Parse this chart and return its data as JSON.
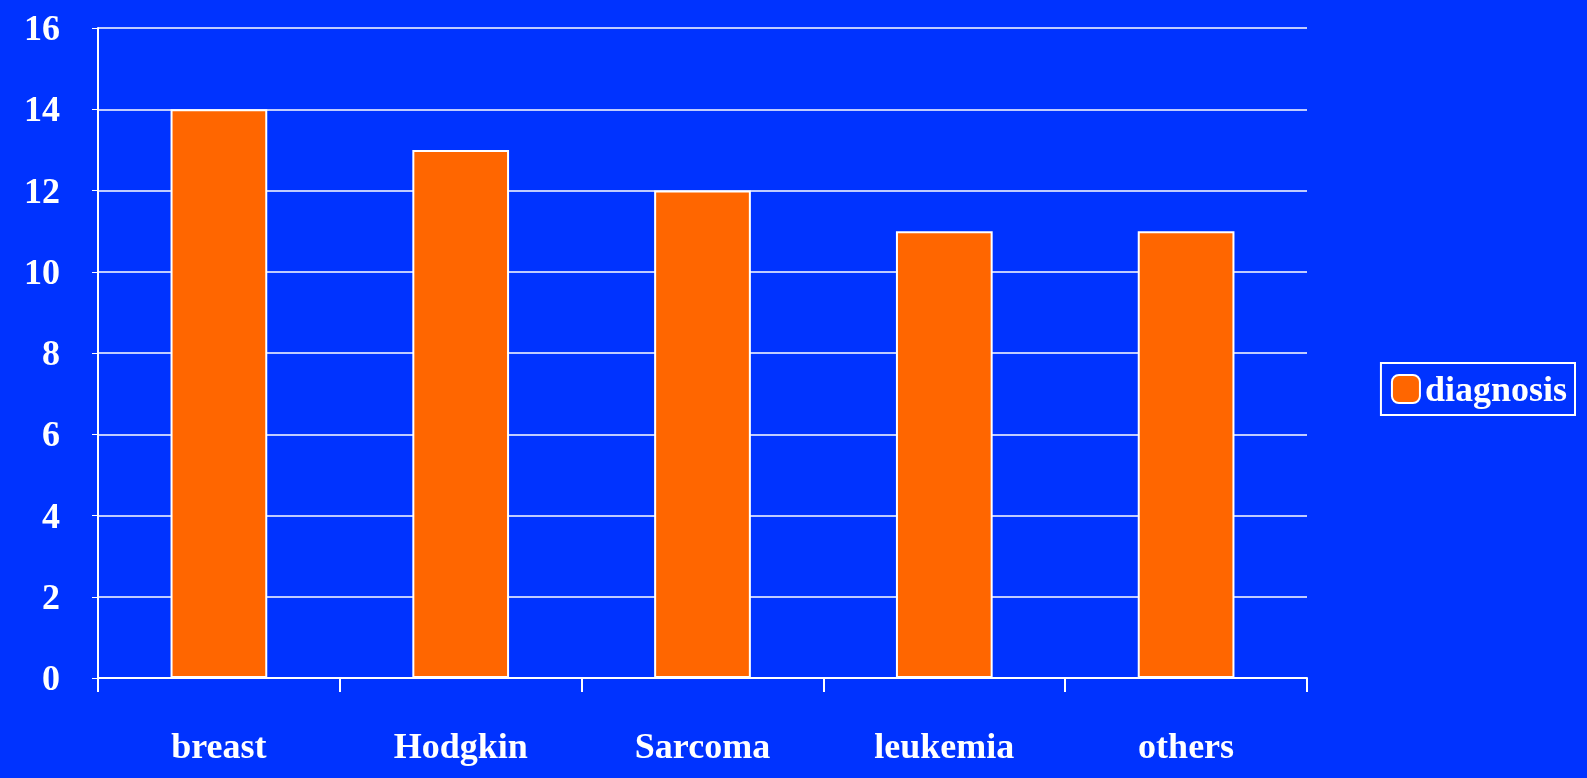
{
  "chart_data": {
    "type": "bar",
    "categories": [
      "breast",
      "Hodgkin",
      "Sarcoma",
      "leukemia",
      "others"
    ],
    "series": [
      {
        "name": "diagnosis",
        "color": "#ff6600",
        "values": [
          14,
          13,
          12,
          11,
          11
        ]
      }
    ],
    "ylim": [
      0,
      16
    ],
    "yticks": [
      0,
      2,
      4,
      6,
      8,
      10,
      12,
      14,
      16
    ],
    "grid": "y",
    "legend": "right"
  }
}
